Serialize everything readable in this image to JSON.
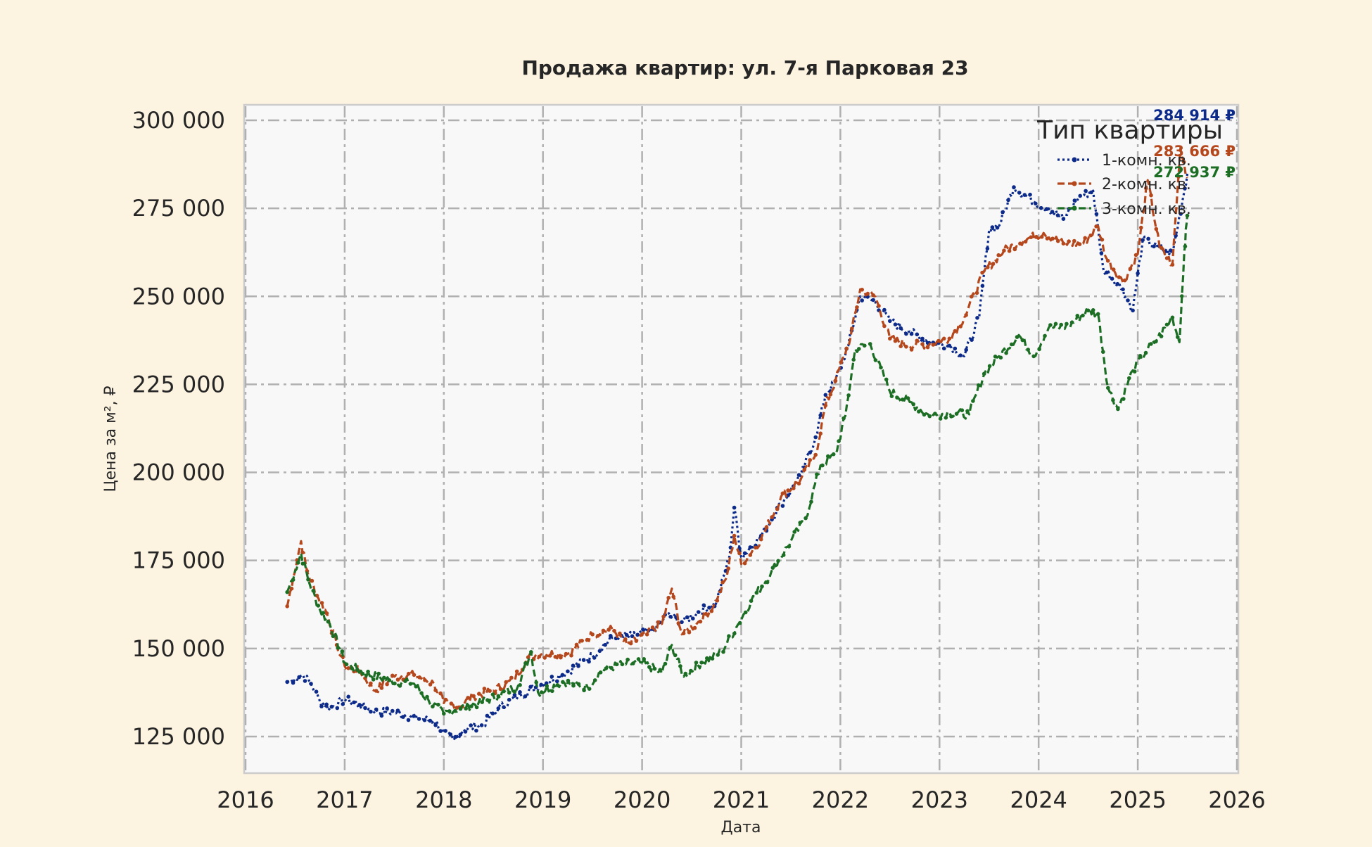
{
  "chart_data": {
    "type": "line",
    "title": "Продажа квартир: ул. 7-я Парковая 23",
    "xlabel": "Дата",
    "ylabel": "Цена за м², ₽",
    "xlim": [
      2016.0,
      2026.0
    ],
    "ylim": [
      115000,
      304000
    ],
    "x_ticks": [
      2016,
      2017,
      2018,
      2019,
      2020,
      2021,
      2022,
      2023,
      2024,
      2025,
      2026
    ],
    "x_tick_labels": [
      "2016",
      "2017",
      "2018",
      "2019",
      "2020",
      "2021",
      "2022",
      "2023",
      "2024",
      "2025",
      "2026"
    ],
    "y_ticks": [
      125000,
      150000,
      175000,
      200000,
      225000,
      250000,
      275000,
      300000
    ],
    "y_tick_labels": [
      "125 000",
      "150 000",
      "175 000",
      "200 000",
      "225 000",
      "250 000",
      "275 000",
      "300 000"
    ],
    "grid": true,
    "legend": {
      "title": "Тип квартиры",
      "position": "top-right"
    },
    "series": [
      {
        "name": "1-комн. кв.",
        "color": "#0c2a8a",
        "line_style": "dotted",
        "end_label": "284 914 ₽",
        "points": [
          [
            2016.42,
            140500
          ],
          [
            2016.5,
            141500
          ],
          [
            2016.58,
            142500
          ],
          [
            2016.66,
            140000
          ],
          [
            2016.75,
            135000
          ],
          [
            2016.85,
            133000
          ],
          [
            2017.0,
            135500
          ],
          [
            2017.15,
            134000
          ],
          [
            2017.3,
            132000
          ],
          [
            2017.5,
            132000
          ],
          [
            2017.75,
            130000
          ],
          [
            2017.9,
            129500
          ],
          [
            2018.0,
            126000
          ],
          [
            2018.1,
            124000
          ],
          [
            2018.2,
            127000
          ],
          [
            2018.4,
            128500
          ],
          [
            2018.55,
            133000
          ],
          [
            2018.75,
            136500
          ],
          [
            2019.0,
            140000
          ],
          [
            2019.25,
            143500
          ],
          [
            2019.5,
            148000
          ],
          [
            2019.7,
            153000
          ],
          [
            2019.9,
            153500
          ],
          [
            2020.1,
            155000
          ],
          [
            2020.25,
            159500
          ],
          [
            2020.4,
            157500
          ],
          [
            2020.55,
            160000
          ],
          [
            2020.75,
            163000
          ],
          [
            2020.88,
            176000
          ],
          [
            2020.93,
            190000
          ],
          [
            2021.0,
            176000
          ],
          [
            2021.2,
            182000
          ],
          [
            2021.4,
            191000
          ],
          [
            2021.6,
            199000
          ],
          [
            2021.75,
            210000
          ],
          [
            2021.85,
            222000
          ],
          [
            2021.95,
            226000
          ],
          [
            2022.08,
            236000
          ],
          [
            2022.2,
            250000
          ],
          [
            2022.35,
            248500
          ],
          [
            2022.5,
            243000
          ],
          [
            2022.7,
            240000
          ],
          [
            2022.9,
            237000
          ],
          [
            2023.1,
            236000
          ],
          [
            2023.25,
            233000
          ],
          [
            2023.4,
            244000
          ],
          [
            2023.5,
            269000
          ],
          [
            2023.6,
            270000
          ],
          [
            2023.75,
            281000
          ],
          [
            2023.95,
            277000
          ],
          [
            2024.1,
            275000
          ],
          [
            2024.25,
            272000
          ],
          [
            2024.4,
            278000
          ],
          [
            2024.55,
            280000
          ],
          [
            2024.65,
            258000
          ],
          [
            2024.85,
            252000
          ],
          [
            2024.95,
            246000
          ],
          [
            2025.05,
            266000
          ],
          [
            2025.2,
            264000
          ],
          [
            2025.35,
            262000
          ],
          [
            2025.45,
            277000
          ],
          [
            2025.5,
            284914
          ]
        ]
      },
      {
        "name": "2-комн. кв.",
        "color": "#b5471c",
        "line_style": "dashed",
        "end_label": "283 666 ₽",
        "points": [
          [
            2016.42,
            162000
          ],
          [
            2016.48,
            170000
          ],
          [
            2016.56,
            180500
          ],
          [
            2016.62,
            172000
          ],
          [
            2016.72,
            165000
          ],
          [
            2016.82,
            160000
          ],
          [
            2016.92,
            151000
          ],
          [
            2017.0,
            145000
          ],
          [
            2017.15,
            143500
          ],
          [
            2017.3,
            138000
          ],
          [
            2017.5,
            142000
          ],
          [
            2017.7,
            142500
          ],
          [
            2017.9,
            140000
          ],
          [
            2018.0,
            134500
          ],
          [
            2018.15,
            133500
          ],
          [
            2018.3,
            136500
          ],
          [
            2018.5,
            138000
          ],
          [
            2018.7,
            141000
          ],
          [
            2018.85,
            147500
          ],
          [
            2019.0,
            148500
          ],
          [
            2019.25,
            148500
          ],
          [
            2019.5,
            154000
          ],
          [
            2019.7,
            155500
          ],
          [
            2019.85,
            151000
          ],
          [
            2020.05,
            154000
          ],
          [
            2020.2,
            157000
          ],
          [
            2020.3,
            167000
          ],
          [
            2020.4,
            154000
          ],
          [
            2020.55,
            157000
          ],
          [
            2020.72,
            162000
          ],
          [
            2020.85,
            170000
          ],
          [
            2020.93,
            182000
          ],
          [
            2021.0,
            174000
          ],
          [
            2021.2,
            181000
          ],
          [
            2021.4,
            193000
          ],
          [
            2021.6,
            198000
          ],
          [
            2021.75,
            205000
          ],
          [
            2021.85,
            219000
          ],
          [
            2021.95,
            226000
          ],
          [
            2022.1,
            238000
          ],
          [
            2022.2,
            252000
          ],
          [
            2022.35,
            250000
          ],
          [
            2022.5,
            238000
          ],
          [
            2022.7,
            236000
          ],
          [
            2022.9,
            236500
          ],
          [
            2023.1,
            238000
          ],
          [
            2023.25,
            244000
          ],
          [
            2023.45,
            257000
          ],
          [
            2023.65,
            263000
          ],
          [
            2023.85,
            266000
          ],
          [
            2024.05,
            268000
          ],
          [
            2024.25,
            265000
          ],
          [
            2024.45,
            265000
          ],
          [
            2024.6,
            270000
          ],
          [
            2024.68,
            261000
          ],
          [
            2024.85,
            254000
          ],
          [
            2025.0,
            262000
          ],
          [
            2025.1,
            283000
          ],
          [
            2025.22,
            264000
          ],
          [
            2025.35,
            259000
          ],
          [
            2025.43,
            292000
          ],
          [
            2025.5,
            283666
          ]
        ]
      },
      {
        "name": "3-комн. кв.",
        "color": "#1d6e25",
        "line_style": "dashed",
        "end_label": "272 937 ₽",
        "points": [
          [
            2016.42,
            166000
          ],
          [
            2016.5,
            172000
          ],
          [
            2016.56,
            177000
          ],
          [
            2016.65,
            168000
          ],
          [
            2016.75,
            161000
          ],
          [
            2016.85,
            157000
          ],
          [
            2016.95,
            150000
          ],
          [
            2017.0,
            146000
          ],
          [
            2017.2,
            143000
          ],
          [
            2017.45,
            141000
          ],
          [
            2017.7,
            140000
          ],
          [
            2017.85,
            135000
          ],
          [
            2018.0,
            131500
          ],
          [
            2018.15,
            133000
          ],
          [
            2018.35,
            134500
          ],
          [
            2018.55,
            136500
          ],
          [
            2018.75,
            139500
          ],
          [
            2018.88,
            149000
          ],
          [
            2018.95,
            137500
          ],
          [
            2019.2,
            140500
          ],
          [
            2019.45,
            139000
          ],
          [
            2019.6,
            144000
          ],
          [
            2019.8,
            145500
          ],
          [
            2020.0,
            146000
          ],
          [
            2020.2,
            143000
          ],
          [
            2020.3,
            151000
          ],
          [
            2020.42,
            142000
          ],
          [
            2020.6,
            146000
          ],
          [
            2020.8,
            149000
          ],
          [
            2020.95,
            156000
          ],
          [
            2021.1,
            163500
          ],
          [
            2021.3,
            171500
          ],
          [
            2021.5,
            180500
          ],
          [
            2021.65,
            187000
          ],
          [
            2021.8,
            202000
          ],
          [
            2021.95,
            205000
          ],
          [
            2022.05,
            216000
          ],
          [
            2022.15,
            235000
          ],
          [
            2022.3,
            236500
          ],
          [
            2022.5,
            223000
          ],
          [
            2022.7,
            220000
          ],
          [
            2022.9,
            216000
          ],
          [
            2023.1,
            217000
          ],
          [
            2023.3,
            216500
          ],
          [
            2023.45,
            228000
          ],
          [
            2023.6,
            233000
          ],
          [
            2023.8,
            239000
          ],
          [
            2023.95,
            233000
          ],
          [
            2024.1,
            241000
          ],
          [
            2024.3,
            241500
          ],
          [
            2024.5,
            246000
          ],
          [
            2024.6,
            245000
          ],
          [
            2024.7,
            224000
          ],
          [
            2024.8,
            218000
          ],
          [
            2024.95,
            229000
          ],
          [
            2025.1,
            235000
          ],
          [
            2025.2,
            238000
          ],
          [
            2025.35,
            244000
          ],
          [
            2025.42,
            237000
          ],
          [
            2025.47,
            263000
          ],
          [
            2025.5,
            272937
          ]
        ]
      }
    ]
  }
}
